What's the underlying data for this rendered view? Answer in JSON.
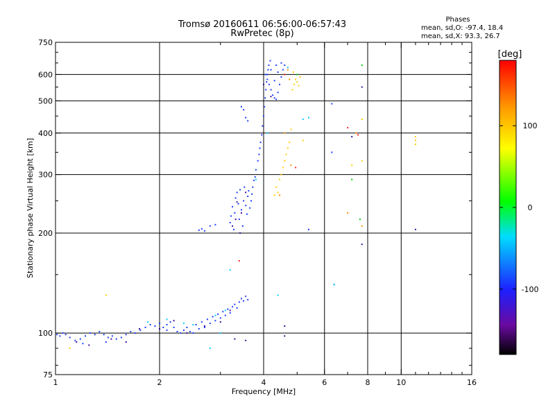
{
  "chart_data": {
    "type": "scatter",
    "title": "Tromsø 20160611 06:56:00-06:57:43",
    "subtitle": "RwPretec (8p)",
    "xlabel": "Frequency [MHz]",
    "ylabel": "Stationary phase Virtual Height [km]",
    "x_scale": "log2",
    "y_scale": "log",
    "xlim": [
      1,
      16
    ],
    "ylim": [
      75,
      750
    ],
    "x_ticks": [
      {
        "value": 1,
        "label": "1"
      },
      {
        "value": 2,
        "label": "2"
      },
      {
        "value": 4,
        "label": "4"
      },
      {
        "value": 6,
        "label": "6"
      },
      {
        "value": 8,
        "label": "8"
      },
      {
        "value": 10,
        "label": "10"
      },
      {
        "value": 16,
        "label": "16"
      }
    ],
    "y_ticks": [
      {
        "value": 75,
        "label": "75"
      },
      {
        "value": 100,
        "label": "100"
      },
      {
        "value": 200,
        "label": "200"
      },
      {
        "value": 300,
        "label": "300"
      },
      {
        "value": 400,
        "label": "400"
      },
      {
        "value": 500,
        "label": "500"
      },
      {
        "value": 600,
        "label": "600"
      },
      {
        "value": 750,
        "label": "750"
      }
    ],
    "x_gridlines": [
      2,
      4,
      6,
      8,
      10
    ],
    "y_gridlines": [
      100,
      200,
      300,
      400,
      500,
      600
    ],
    "stats": {
      "heading": "Phases",
      "line_o": "mean, sd,O: -97.4, 18.4",
      "line_x": "mean, sd,X:  93.3, 26.7"
    },
    "colorbar": {
      "label": "[deg]",
      "range": [
        -180,
        180
      ],
      "ticks": [
        {
          "value": 100,
          "label": "100"
        },
        {
          "value": 0,
          "label": "0"
        },
        {
          "value": -100,
          "label": "-100"
        }
      ],
      "stops": [
        {
          "pos": 0.0,
          "color": "#000000"
        },
        {
          "pos": 0.1,
          "color": "#6a0aa0"
        },
        {
          "pos": 0.22,
          "color": "#1d20ff"
        },
        {
          "pos": 0.4,
          "color": "#00dcff"
        },
        {
          "pos": 0.52,
          "color": "#00ff00"
        },
        {
          "pos": 0.7,
          "color": "#ffff00"
        },
        {
          "pos": 0.84,
          "color": "#ff9900"
        },
        {
          "pos": 1.0,
          "color": "#ff0000"
        }
      ]
    },
    "grid": true,
    "series": [
      {
        "color": "#1a3cff",
        "points": [
          [
            1.01,
            99
          ],
          [
            1.03,
            98
          ],
          [
            1.05,
            100
          ],
          [
            1.07,
            99
          ],
          [
            1.1,
            97
          ],
          [
            1.14,
            95
          ],
          [
            1.18,
            96
          ],
          [
            1.22,
            98
          ],
          [
            1.26,
            100
          ],
          [
            1.3,
            99
          ],
          [
            1.34,
            101
          ],
          [
            1.38,
            99
          ],
          [
            1.42,
            97
          ],
          [
            1.46,
            98
          ],
          [
            1.5,
            96
          ],
          [
            1.55,
            97
          ],
          [
            1.6,
            99
          ],
          [
            1.65,
            101
          ],
          [
            1.7,
            100
          ],
          [
            1.76,
            102
          ],
          [
            1.82,
            104
          ],
          [
            1.88,
            106
          ],
          [
            1.94,
            105
          ],
          [
            2.0,
            107
          ],
          [
            2.05,
            104
          ],
          [
            2.1,
            106
          ],
          [
            2.15,
            108
          ],
          [
            2.2,
            104
          ],
          [
            2.25,
            101
          ],
          [
            2.3,
            100
          ],
          [
            2.35,
            102
          ],
          [
            2.4,
            104
          ],
          [
            2.45,
            101
          ],
          [
            2.5,
            100
          ],
          [
            2.55,
            106
          ],
          [
            2.6,
            103
          ],
          [
            2.65,
            108
          ],
          [
            2.7,
            104
          ],
          [
            2.75,
            110
          ],
          [
            2.8,
            107
          ],
          [
            2.85,
            112
          ],
          [
            2.9,
            109
          ],
          [
            2.95,
            114
          ],
          [
            3.0,
            111
          ],
          [
            3.05,
            116
          ],
          [
            3.1,
            113
          ],
          [
            3.15,
            118
          ],
          [
            3.2,
            115
          ],
          [
            3.25,
            120
          ],
          [
            3.3,
            122
          ],
          [
            3.35,
            119
          ],
          [
            3.4,
            124
          ],
          [
            3.45,
            127
          ],
          [
            3.5,
            125
          ],
          [
            3.55,
            129
          ],
          [
            3.6,
            126
          ],
          [
            2.6,
            204
          ],
          [
            2.65,
            206
          ],
          [
            2.7,
            203
          ],
          [
            2.8,
            210
          ],
          [
            2.9,
            212
          ],
          [
            3.2,
            215
          ],
          [
            3.22,
            225
          ],
          [
            3.25,
            240
          ],
          [
            3.28,
            205
          ],
          [
            3.3,
            230
          ],
          [
            3.32,
            255
          ],
          [
            3.35,
            265
          ],
          [
            3.38,
            245
          ],
          [
            3.4,
            220
          ],
          [
            3.42,
            270
          ],
          [
            3.45,
            235
          ],
          [
            3.48,
            210
          ],
          [
            3.5,
            250
          ],
          [
            3.52,
            275
          ],
          [
            3.55,
            242
          ],
          [
            3.58,
            228
          ],
          [
            3.6,
            258
          ],
          [
            3.62,
            268
          ],
          [
            3.65,
            238
          ],
          [
            3.68,
            250
          ],
          [
            3.7,
            262
          ],
          [
            3.72,
            275
          ],
          [
            3.75,
            288
          ],
          [
            3.78,
            295
          ],
          [
            3.8,
            310
          ],
          [
            3.45,
            480
          ],
          [
            3.5,
            470
          ],
          [
            3.55,
            445
          ],
          [
            3.6,
            435
          ],
          [
            3.85,
            330
          ],
          [
            3.88,
            345
          ],
          [
            3.9,
            360
          ],
          [
            3.92,
            375
          ],
          [
            3.95,
            395
          ],
          [
            3.97,
            420
          ],
          [
            4.0,
            450
          ],
          [
            4.02,
            480
          ],
          [
            4.04,
            510
          ],
          [
            4.06,
            540
          ],
          [
            4.08,
            570
          ],
          [
            4.1,
            600
          ],
          [
            4.12,
            620
          ],
          [
            4.14,
            640
          ],
          [
            4.05,
            600
          ],
          [
            4.1,
            580
          ],
          [
            4.15,
            560
          ],
          [
            4.2,
            540
          ],
          [
            4.25,
            520
          ],
          [
            4.3,
            510
          ],
          [
            4.35,
            505
          ],
          [
            4.4,
            530
          ],
          [
            4.45,
            560
          ],
          [
            4.5,
            590
          ],
          [
            4.55,
            620
          ],
          [
            4.6,
            640
          ],
          [
            4.5,
            650
          ],
          [
            4.4,
            610
          ],
          [
            4.3,
            575
          ],
          [
            4.2,
            620
          ],
          [
            4.18,
            660
          ],
          [
            4.35,
            640
          ],
          [
            1.2,
            93
          ],
          [
            1.4,
            94
          ],
          [
            2.1,
            102
          ],
          [
            6.3,
            490
          ],
          [
            6.3,
            350
          ],
          [
            6.4,
            140
          ],
          [
            5.4,
            205
          ]
        ]
      },
      {
        "color": "#3a0a9a",
        "points": [
          [
            1.15,
            94
          ],
          [
            1.25,
            92
          ],
          [
            1.45,
            96
          ],
          [
            1.6,
            94
          ],
          [
            1.75,
            103
          ],
          [
            2.0,
            103
          ],
          [
            2.2,
            109
          ],
          [
            2.4,
            100
          ],
          [
            2.7,
            105
          ],
          [
            3.0,
            108
          ],
          [
            3.2,
            117
          ],
          [
            3.3,
            96
          ],
          [
            3.55,
            95
          ],
          [
            3.25,
            210
          ],
          [
            3.35,
            248
          ],
          [
            3.45,
            230
          ],
          [
            3.55,
            265
          ],
          [
            3.32,
            220
          ],
          [
            3.42,
            200
          ],
          [
            4.0,
            560
          ],
          [
            4.2,
            515
          ],
          [
            4.6,
            98
          ],
          [
            4.6,
            105
          ],
          [
            7.7,
            185
          ],
          [
            7.7,
            550
          ],
          [
            7.2,
            390
          ],
          [
            11.0,
            205
          ]
        ]
      },
      {
        "color": "#00ccff",
        "points": [
          [
            1.85,
            108
          ],
          [
            2.1,
            110
          ],
          [
            2.35,
            107
          ],
          [
            2.5,
            106
          ],
          [
            2.9,
            113
          ],
          [
            3.1,
            117
          ],
          [
            3.2,
            155
          ],
          [
            2.8,
            90
          ],
          [
            3.0,
            100
          ],
          [
            3.8,
            290
          ],
          [
            4.1,
            400
          ],
          [
            4.4,
            130
          ],
          [
            4.7,
            630
          ],
          [
            5.2,
            440
          ],
          [
            5.4,
            445
          ],
          [
            6.4,
            140
          ]
        ]
      },
      {
        "color": "#ffcc00",
        "points": [
          [
            1.1,
            90
          ],
          [
            1.4,
            130
          ],
          [
            4.3,
            260
          ],
          [
            4.35,
            275
          ],
          [
            4.4,
            265
          ],
          [
            4.45,
            290
          ],
          [
            4.5,
            300
          ],
          [
            4.55,
            315
          ],
          [
            4.6,
            330
          ],
          [
            4.65,
            345
          ],
          [
            4.7,
            360
          ],
          [
            4.75,
            375
          ],
          [
            4.8,
            410
          ],
          [
            4.85,
            540
          ],
          [
            4.9,
            560
          ],
          [
            4.95,
            580
          ],
          [
            5.0,
            570
          ],
          [
            5.05,
            555
          ],
          [
            5.1,
            590
          ],
          [
            4.88,
            610
          ],
          [
            5.2,
            380
          ],
          [
            7.2,
            320
          ],
          [
            7.7,
            330
          ],
          [
            7.7,
            440
          ],
          [
            11.0,
            390
          ],
          [
            11.0,
            370
          ],
          [
            11.0,
            380
          ]
        ]
      },
      {
        "color": "#ff8c00",
        "points": [
          [
            4.7,
            620
          ],
          [
            4.75,
            580
          ],
          [
            4.6,
            400
          ],
          [
            4.45,
            260
          ],
          [
            4.8,
            320
          ],
          [
            7.4,
            400
          ],
          [
            7.0,
            230
          ],
          [
            7.7,
            210
          ]
        ]
      },
      {
        "color": "#ff2020",
        "points": [
          [
            3.4,
            165
          ],
          [
            4.6,
            600
          ],
          [
            4.95,
            315
          ],
          [
            7.0,
            415
          ],
          [
            7.5,
            395
          ]
        ]
      },
      {
        "color": "#00cc00",
        "points": [
          [
            7.7,
            640
          ],
          [
            7.2,
            290
          ],
          [
            7.6,
            220
          ],
          [
            5.0,
            600
          ]
        ]
      }
    ]
  }
}
